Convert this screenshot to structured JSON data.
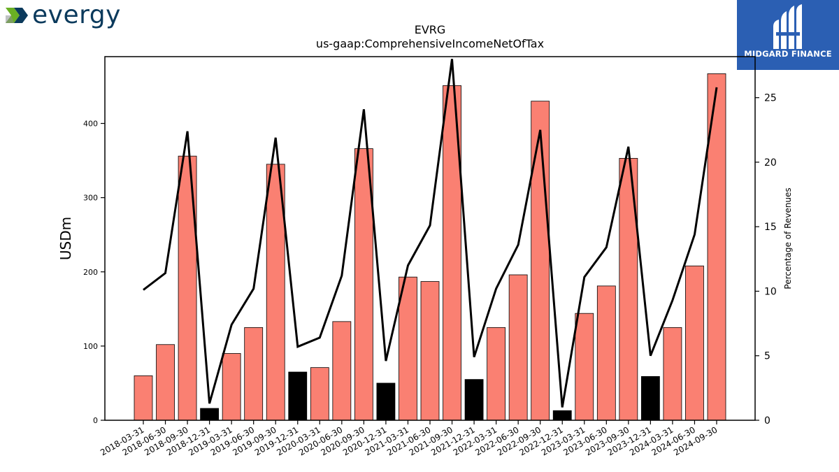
{
  "logo": {
    "text": "evergy",
    "colors": [
      "#6ab023",
      "#0b3a5c"
    ]
  },
  "badge": {
    "text": "MIDGARD FINANCE",
    "icon": "midgard-logo-icon",
    "background": "#2b5fb3"
  },
  "chart_data": {
    "type": "bar",
    "title": "EVRG",
    "subtitle": "us-gaap:ComprehensiveIncomeNetOfTax",
    "ylabel": "USDm",
    "y2label": "Percentage of Revenues",
    "ylim": [
      0,
      490
    ],
    "y2lim": [
      0,
      28.18
    ],
    "yticks": [
      0,
      100,
      200,
      300,
      400
    ],
    "y2ticks": [
      0,
      5,
      10,
      15,
      20,
      25
    ],
    "grid": false,
    "categories": [
      "2018-03-31",
      "2018-06-30",
      "2018-09-30",
      "2018-12-31",
      "2019-03-31",
      "2019-06-30",
      "2019-09-30",
      "2019-12-31",
      "2020-03-31",
      "2020-06-30",
      "2020-09-30",
      "2020-12-31",
      "2021-03-31",
      "2021-06-30",
      "2021-09-30",
      "2021-12-31",
      "2022-03-31",
      "2022-06-30",
      "2022-09-30",
      "2022-12-31",
      "2023-03-31",
      "2023-06-30",
      "2023-09-30",
      "2023-12-31",
      "2024-03-31",
      "2024-06-30",
      "2024-09-30"
    ],
    "series": [
      {
        "type": "bar",
        "values": [
          60,
          102,
          356,
          16,
          90,
          125,
          345,
          65,
          71,
          133,
          366,
          50,
          193,
          187,
          451,
          55,
          125,
          196,
          430,
          13,
          144,
          181,
          353,
          59,
          125,
          208,
          467
        ]
      },
      {
        "type": "line",
        "values": [
          10.1,
          11.4,
          22.4,
          1.3,
          7.4,
          10.2,
          21.9,
          5.7,
          6.4,
          11.2,
          24.1,
          4.6,
          12,
          15.1,
          28,
          4.9,
          10.2,
          13.6,
          22.5,
          1,
          11.1,
          13.4,
          21.2,
          5,
          9.3,
          14.4,
          25.8
        ]
      }
    ],
    "bar_colors": {
      "quarter": "#fa8072",
      "year_end": "#000000"
    },
    "line_color": "#000000"
  }
}
